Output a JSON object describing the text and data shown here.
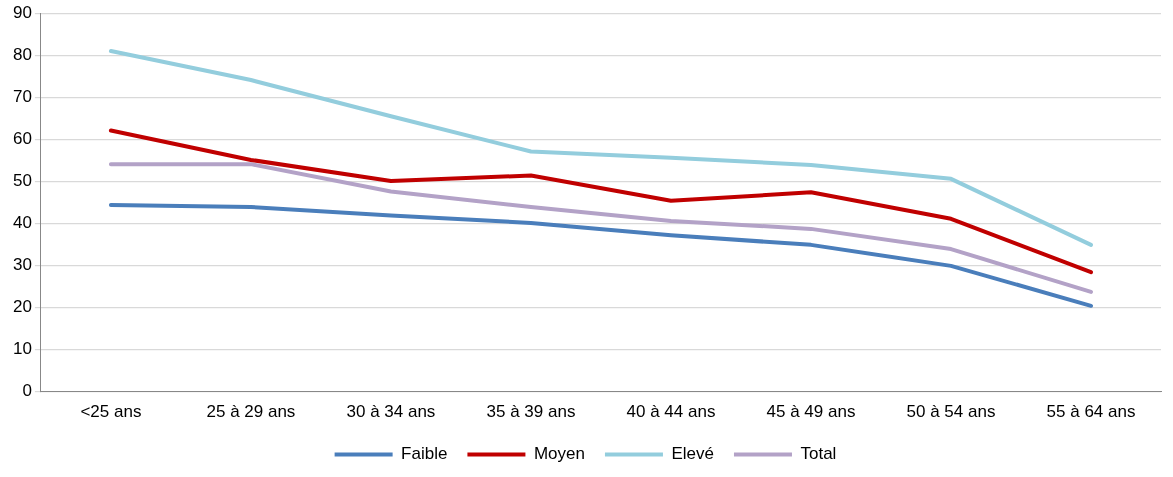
{
  "chart_data": {
    "type": "line",
    "categories": [
      "<25 ans",
      "25 à 29 ans",
      "30 à 34 ans",
      "35 à 39 ans",
      "40 à 44 ans",
      "45 à 49 ans",
      "50 à 54 ans",
      "55 à 64 ans"
    ],
    "series": [
      {
        "name": "Faible",
        "color": "#4a7ebb",
        "values": [
          44.4,
          43.9,
          41.9,
          40.1,
          37.2,
          34.9,
          29.9,
          20.4
        ]
      },
      {
        "name": "Moyen",
        "color": "#c00000",
        "values": [
          62.1,
          55.1,
          50.1,
          51.4,
          45.4,
          47.4,
          41.1,
          28.4
        ]
      },
      {
        "name": "Elevé",
        "color": "#93cddd",
        "values": [
          81.0,
          74.1,
          65.5,
          57.1,
          55.6,
          53.9,
          50.6,
          34.9
        ]
      },
      {
        "name": "Total",
        "color": "#b3a2c7",
        "values": [
          54.1,
          54.1,
          47.6,
          43.9,
          40.6,
          38.7,
          33.9,
          23.7
        ]
      }
    ],
    "ylim": [
      0,
      90
    ],
    "yticks": [
      0,
      10,
      20,
      30,
      40,
      50,
      60,
      70,
      80,
      90
    ],
    "grid": "y",
    "legend": "bottom",
    "marker": "none",
    "line_style": "solid"
  }
}
